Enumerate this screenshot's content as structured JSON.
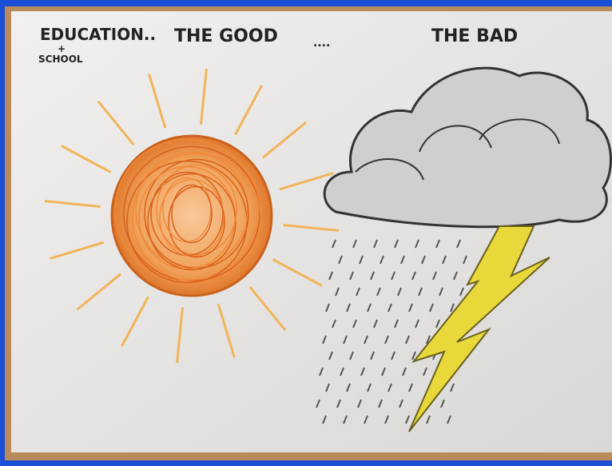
{
  "headings": {
    "topic": "EDUCATION..",
    "topic_plus": "+",
    "topic_sub": "SCHOOL",
    "good": "THE GOOD",
    "separator": "....",
    "bad": "THE BAD"
  }
}
